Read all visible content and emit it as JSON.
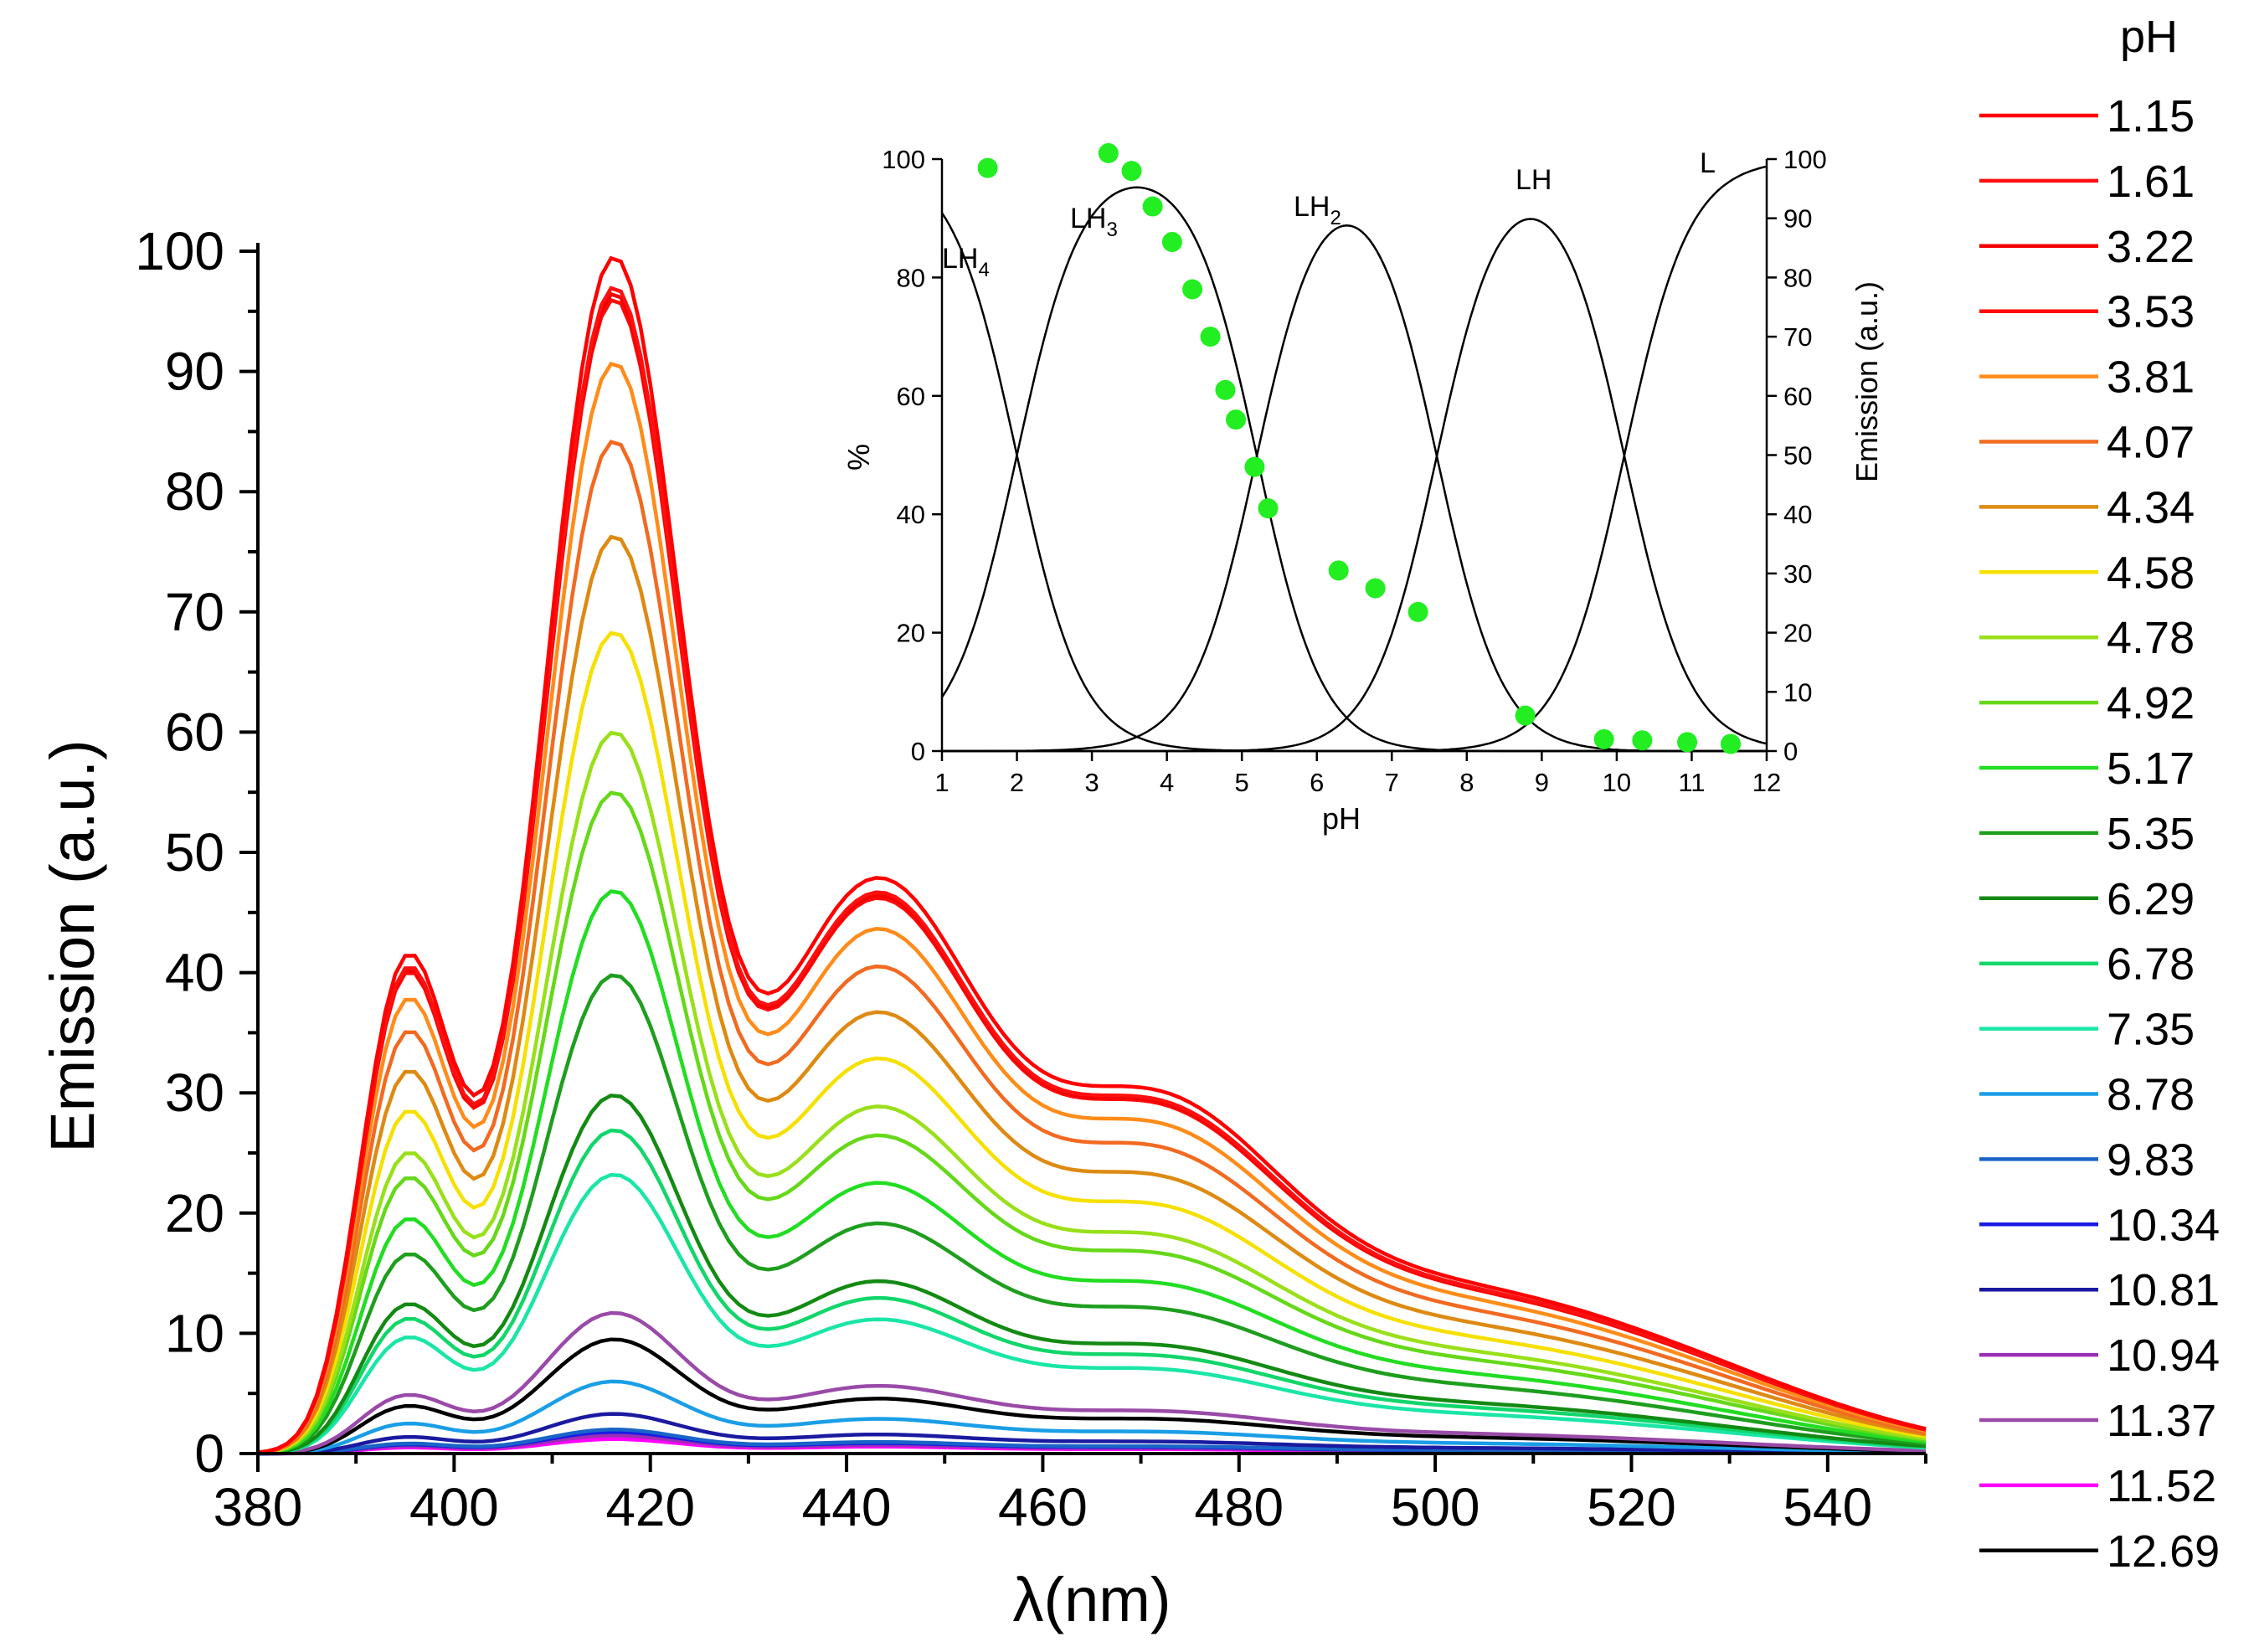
{
  "chart_data": [
    {
      "type": "line",
      "xlabel": "λ(nm)",
      "ylabel": "Emission (a.u.)",
      "xlim": [
        380,
        550
      ],
      "ylim": [
        0,
        100
      ],
      "xticks": [
        380,
        400,
        420,
        440,
        460,
        480,
        500,
        520,
        540
      ],
      "yticks": [
        0,
        10,
        20,
        30,
        40,
        50,
        60,
        70,
        80,
        90,
        100
      ],
      "legend_title": "pH",
      "legend_position": "right",
      "series": [
        {
          "name": "1.15",
          "color": "#ff0000",
          "peak": 99.5
        },
        {
          "name": "1.61",
          "color": "#ff1010",
          "peak": 97.0
        },
        {
          "name": "3.22",
          "color": "#f20000",
          "peak": 96.5
        },
        {
          "name": "3.53",
          "color": "#ff0a0a",
          "peak": 96.0
        },
        {
          "name": "3.81",
          "color": "#ff8c1a",
          "peak": 90.7
        },
        {
          "name": "4.07",
          "color": "#f26a21",
          "peak": 84.2
        },
        {
          "name": "4.34",
          "color": "#de8a12",
          "peak": 76.3
        },
        {
          "name": "4.58",
          "color": "#f5e000",
          "peak": 68.3
        },
        {
          "name": "4.78",
          "color": "#99e01a",
          "peak": 60.0
        },
        {
          "name": "4.92",
          "color": "#66d81a",
          "peak": 55.0
        },
        {
          "name": "5.17",
          "color": "#22dd22",
          "peak": 46.8
        },
        {
          "name": "5.35",
          "color": "#1e9e1e",
          "peak": 39.8
        },
        {
          "name": "6.29",
          "color": "#138a13",
          "peak": 29.8
        },
        {
          "name": "6.78",
          "color": "#12d66a",
          "peak": 26.9
        },
        {
          "name": "7.35",
          "color": "#1ae6a6",
          "peak": 23.2
        },
        {
          "name": "8.78",
          "color": "#1a9ee6",
          "peak": 6.0
        },
        {
          "name": "9.83",
          "color": "#1a64c8",
          "peak": 2.0
        },
        {
          "name": "10.34",
          "color": "#1a1ae6",
          "peak": 1.8
        },
        {
          "name": "10.81",
          "color": "#1a1aa0",
          "peak": 3.3
        },
        {
          "name": "10.94",
          "color": "#9a2fb5",
          "peak": 1.5
        },
        {
          "name": "11.37",
          "color": "#9a4aa8",
          "peak": 11.7
        },
        {
          "name": "11.52",
          "color": "#ff00ff",
          "peak": 1.2
        },
        {
          "name": "12.69",
          "color": "#000000",
          "peak": 9.5
        }
      ]
    },
    {
      "type": "line",
      "role": "inset",
      "xlabel": "pH",
      "ylabel": "%",
      "y2label": "Emission (a.u.)",
      "xlim": [
        1,
        12
      ],
      "ylim": [
        0,
        100
      ],
      "y2lim": [
        0,
        100
      ],
      "xticks": [
        1,
        2,
        3,
        4,
        5,
        6,
        7,
        8,
        9,
        10,
        11,
        12
      ],
      "yticks": [
        0,
        20,
        40,
        60,
        80,
        100
      ],
      "y2ticks": [
        0,
        10,
        20,
        30,
        40,
        50,
        60,
        70,
        80,
        90,
        100
      ],
      "species": [
        {
          "name": "LH",
          "sub": "4"
        },
        {
          "name": "LH",
          "sub": "3"
        },
        {
          "name": "LH",
          "sub": "2"
        },
        {
          "name": "LH",
          "sub": ""
        },
        {
          "name": "L",
          "sub": ""
        }
      ],
      "pKa": [
        2.0,
        5.2,
        7.6,
        10.1
      ],
      "scatter": {
        "color": "#22ee22",
        "x": [
          1.61,
          3.22,
          3.53,
          3.81,
          4.07,
          4.34,
          4.58,
          4.78,
          4.92,
          5.17,
          5.35,
          6.29,
          6.78,
          7.35,
          8.78,
          9.83,
          10.34,
          10.94,
          11.52
        ],
        "y": [
          98.5,
          101,
          98,
          92,
          86,
          78,
          70,
          61,
          56,
          48,
          41,
          30.5,
          27.5,
          23.5,
          6,
          2,
          1.8,
          1.5,
          1.2
        ]
      }
    }
  ]
}
